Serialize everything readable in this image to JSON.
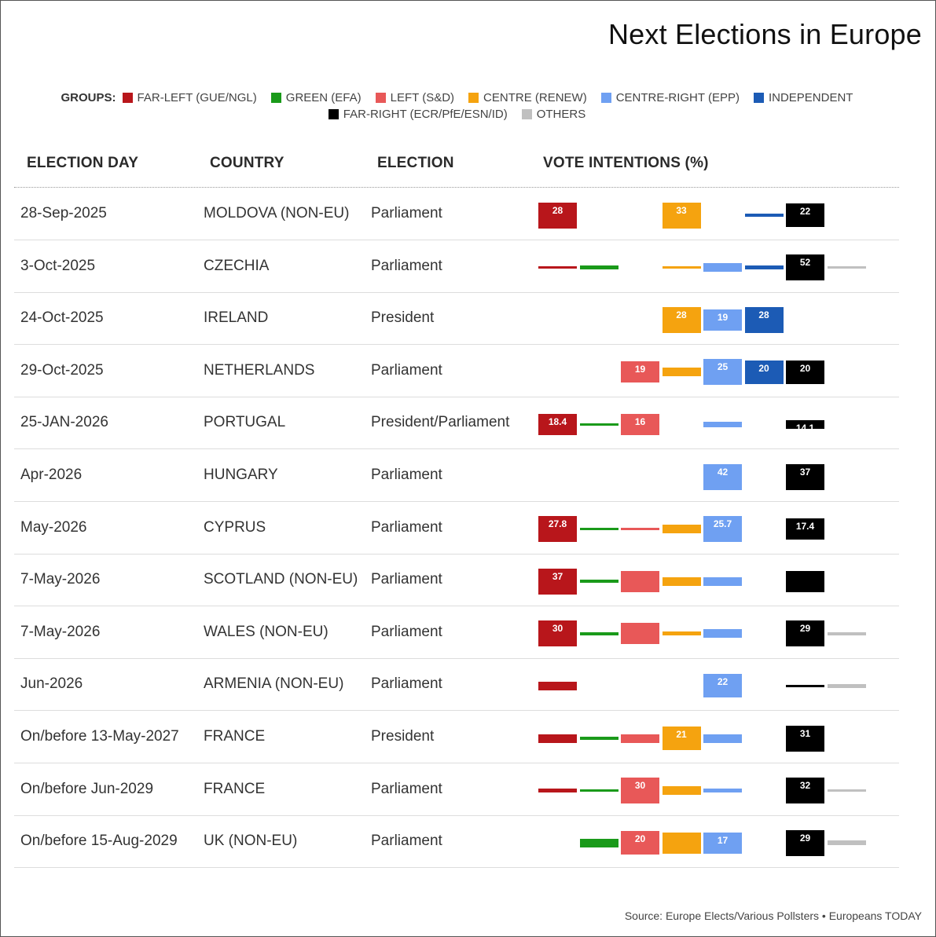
{
  "title": "Next Elections in Europe",
  "source": "Source: Europe Elects/Various Pollsters • Europeans TODAY",
  "legend": {
    "label": "GROUPS:",
    "row1": [
      {
        "name": "FAR-LEFT (GUE/NGL)",
        "color": "#b8161b"
      },
      {
        "name": "GREEN (EFA)",
        "color": "#1a9a1a"
      },
      {
        "name": "LEFT (S&D)",
        "color": "#e85858"
      },
      {
        "name": "CENTRE (RENEW)",
        "color": "#f5a30f"
      },
      {
        "name": "CENTRE-RIGHT (EPP)",
        "color": "#6fa0f2"
      },
      {
        "name": "INDEPENDENT",
        "color": "#1c5bb5"
      }
    ],
    "row2": [
      {
        "name": "FAR-RIGHT (ECR/PfE/ESN/ID)",
        "color": "#000000"
      },
      {
        "name": "OTHERS",
        "color": "#c0c0c0"
      }
    ]
  },
  "headers": {
    "date": "ELECTION DAY",
    "country": "COUNTRY",
    "election": "ELECTION",
    "votes": "VOTE INTENTIONS (%)"
  },
  "chart_data": {
    "type": "bar",
    "title": "Next Elections in Europe",
    "unit": "%",
    "groups": [
      "FAR-LEFT (GUE/NGL)",
      "GREEN (EFA)",
      "LEFT (S&D)",
      "CENTRE (RENEW)",
      "CENTRE-RIGHT (EPP)",
      "INDEPENDENT",
      "FAR-RIGHT (ECR/PfE/ESN/ID)",
      "OTHERS"
    ],
    "colors": [
      "#b8161b",
      "#1a9a1a",
      "#e85858",
      "#f5a30f",
      "#6fa0f2",
      "#1c5bb5",
      "#000000",
      "#c0c0c0"
    ],
    "value_range": [
      0,
      52
    ],
    "rows": [
      {
        "date": "28-Sep-2025",
        "country": "MOLDOVA (NON-EU)",
        "election": "Parliament",
        "values": [
          28,
          null,
          null,
          33,
          null,
          6,
          22,
          null
        ],
        "labels": [
          "28",
          "",
          "",
          "33",
          "",
          "",
          "22",
          ""
        ]
      },
      {
        "date": "3-Oct-2025",
        "country": "CZECHIA",
        "election": "Parliament",
        "values": [
          5,
          8,
          null,
          5,
          13,
          7,
          52,
          1
        ],
        "labels": [
          "",
          "",
          "",
          "",
          "",
          "",
          "52",
          ""
        ]
      },
      {
        "date": "24-Oct-2025",
        "country": "IRELAND",
        "election": "President",
        "values": [
          null,
          null,
          null,
          28,
          19,
          28,
          null,
          null
        ],
        "labels": [
          "",
          "",
          "",
          "28",
          "19",
          "28",
          "",
          ""
        ]
      },
      {
        "date": "29-Oct-2025",
        "country": "NETHERLANDS",
        "election": "Parliament",
        "values": [
          null,
          null,
          19,
          14,
          25,
          20,
          20,
          null
        ],
        "labels": [
          "",
          "",
          "19",
          "",
          "25",
          "20",
          "20",
          ""
        ]
      },
      {
        "date": "25-JAN-2026",
        "country": "PORTUGAL",
        "election": "President/Parliament",
        "values": [
          18.4,
          3,
          16,
          null,
          9,
          null,
          14.1,
          null
        ],
        "labels": [
          "18.4",
          "",
          "16",
          "",
          "",
          "",
          "14.1",
          ""
        ]
      },
      {
        "date": "Apr-2026",
        "country": "HUNGARY",
        "election": "Parliament",
        "values": [
          null,
          null,
          null,
          null,
          42,
          null,
          37,
          null
        ],
        "labels": [
          "",
          "",
          "",
          "",
          "42",
          "",
          "37",
          ""
        ]
      },
      {
        "date": "May-2026",
        "country": "CYPRUS",
        "election": "Parliament",
        "values": [
          27.8,
          3,
          3,
          10,
          25.7,
          null,
          17.4,
          null
        ],
        "labels": [
          "27.8",
          "",
          "",
          "",
          "25.7",
          "",
          "17.4",
          ""
        ]
      },
      {
        "date": "7-May-2026",
        "country": "SCOTLAND (NON-EU)",
        "election": "Parliament",
        "values": [
          37,
          5,
          17,
          12,
          12,
          null,
          16,
          null
        ],
        "labels": [
          "37",
          "",
          "",
          "",
          "",
          "",
          "",
          ""
        ]
      },
      {
        "date": "7-May-2026",
        "country": "WALES (NON-EU)",
        "election": "Parliament",
        "values": [
          30,
          6,
          17,
          7,
          13,
          null,
          29,
          5
        ],
        "labels": [
          "30",
          "",
          "",
          "",
          "",
          "",
          "29",
          ""
        ]
      },
      {
        "date": "Jun-2026",
        "country": "ARMENIA (NON-EU)",
        "election": "Parliament",
        "values": [
          11,
          null,
          null,
          null,
          22,
          null,
          5,
          7
        ],
        "labels": [
          "",
          "",
          "",
          "",
          "22",
          "",
          "",
          ""
        ]
      },
      {
        "date": "On/before 13-May-2027",
        "country": "FRANCE",
        "election": "President",
        "values": [
          14,
          6,
          10,
          21,
          12,
          null,
          31,
          null
        ],
        "labels": [
          "",
          "",
          "",
          "21",
          "",
          "",
          "31",
          ""
        ]
      },
      {
        "date": "On/before Jun-2029",
        "country": "FRANCE",
        "election": "Parliament",
        "values": [
          7,
          2,
          30,
          14,
          8,
          null,
          32,
          4
        ],
        "labels": [
          "",
          "",
          "30",
          "",
          "",
          "",
          "32",
          ""
        ]
      },
      {
        "date": "On/before 15-Aug-2029",
        "country": "UK (NON-EU)",
        "election": "Parliament",
        "values": [
          null,
          12,
          20,
          17,
          17,
          null,
          29,
          8
        ],
        "labels": [
          "",
          "",
          "20",
          "",
          "17",
          "",
          "29",
          ""
        ]
      }
    ]
  }
}
